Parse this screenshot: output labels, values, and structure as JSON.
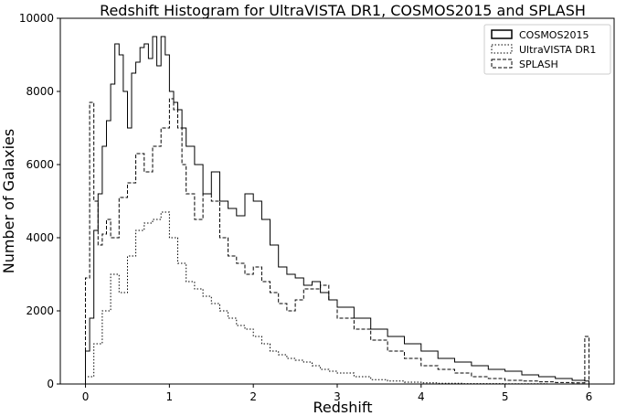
{
  "chart_data": {
    "type": "line",
    "title": "Redshift Histogram for UltraVISTA DR1, COSMOS2015 and SPLASH",
    "xlabel": "Redshift",
    "ylabel": "Number of Galaxies",
    "xlim": [
      -0.3,
      6.3
    ],
    "ylim": [
      0,
      10000
    ],
    "xticks": [
      0,
      1,
      2,
      3,
      4,
      5,
      6
    ],
    "yticks": [
      0,
      2000,
      4000,
      6000,
      8000,
      10000
    ],
    "grid": false,
    "legend_position": "top-right",
    "series": [
      {
        "name": "COSMOS2015",
        "style": "solid",
        "x": [
          0.0,
          0.05,
          0.1,
          0.15,
          0.2,
          0.25,
          0.3,
          0.35,
          0.4,
          0.45,
          0.5,
          0.55,
          0.6,
          0.65,
          0.7,
          0.75,
          0.8,
          0.85,
          0.9,
          0.95,
          1.0,
          1.05,
          1.1,
          1.15,
          1.2,
          1.3,
          1.4,
          1.5,
          1.6,
          1.7,
          1.8,
          1.9,
          2.0,
          2.1,
          2.2,
          2.3,
          2.4,
          2.5,
          2.6,
          2.7,
          2.8,
          2.9,
          3.0,
          3.2,
          3.4,
          3.6,
          3.8,
          4.0,
          4.2,
          4.4,
          4.6,
          4.8,
          5.0,
          5.2,
          5.4,
          5.6,
          5.8,
          5.95,
          6.0
        ],
        "values": [
          900,
          1800,
          4200,
          5200,
          6500,
          7200,
          8200,
          9300,
          9000,
          8000,
          7000,
          8500,
          8800,
          9200,
          9300,
          8900,
          9500,
          8700,
          9500,
          9000,
          8000,
          7700,
          7500,
          7000,
          6500,
          6000,
          5200,
          5800,
          5000,
          4800,
          4600,
          5200,
          5000,
          4500,
          3800,
          3200,
          3000,
          2900,
          2700,
          2800,
          2500,
          2300,
          2100,
          1800,
          1500,
          1300,
          1100,
          900,
          700,
          600,
          500,
          400,
          350,
          250,
          200,
          150,
          100,
          80,
          0
        ]
      },
      {
        "name": "UltraVISTA DR1",
        "style": "dotted",
        "x": [
          0.0,
          0.1,
          0.2,
          0.3,
          0.4,
          0.5,
          0.6,
          0.7,
          0.8,
          0.9,
          1.0,
          1.1,
          1.2,
          1.3,
          1.4,
          1.5,
          1.6,
          1.7,
          1.8,
          1.9,
          2.0,
          2.1,
          2.2,
          2.3,
          2.4,
          2.5,
          2.6,
          2.7,
          2.8,
          2.9,
          3.0,
          3.2,
          3.4,
          3.6,
          3.8,
          4.0,
          4.2,
          4.5,
          5.0,
          5.5,
          6.0
        ],
        "values": [
          200,
          1100,
          2000,
          3000,
          2500,
          3500,
          4200,
          4400,
          4500,
          4700,
          4000,
          3300,
          2800,
          2600,
          2400,
          2200,
          2000,
          1800,
          1600,
          1500,
          1300,
          1100,
          900,
          800,
          700,
          650,
          600,
          500,
          400,
          350,
          300,
          200,
          120,
          80,
          50,
          30,
          20,
          10,
          5,
          0,
          0
        ]
      },
      {
        "name": "SPLASH",
        "style": "dashed",
        "x": [
          0.0,
          0.05,
          0.1,
          0.15,
          0.2,
          0.25,
          0.3,
          0.4,
          0.5,
          0.6,
          0.7,
          0.8,
          0.9,
          1.0,
          1.05,
          1.1,
          1.15,
          1.2,
          1.3,
          1.4,
          1.5,
          1.6,
          1.7,
          1.8,
          1.9,
          2.0,
          2.1,
          2.2,
          2.3,
          2.4,
          2.5,
          2.6,
          2.7,
          2.8,
          2.9,
          3.0,
          3.2,
          3.4,
          3.6,
          3.8,
          4.0,
          4.2,
          4.4,
          4.6,
          4.8,
          5.0,
          5.2,
          5.4,
          5.6,
          5.8,
          5.95,
          6.0
        ],
        "values": [
          2900,
          7700,
          5000,
          3800,
          4100,
          4500,
          4000,
          5100,
          5500,
          6300,
          5800,
          6500,
          7000,
          7800,
          7500,
          7000,
          6000,
          5200,
          4500,
          5200,
          5000,
          4000,
          3500,
          3300,
          3000,
          3200,
          2800,
          2500,
          2200,
          2000,
          2300,
          2600,
          2600,
          2700,
          2300,
          1800,
          1500,
          1200,
          900,
          700,
          500,
          400,
          300,
          200,
          150,
          100,
          80,
          60,
          40,
          30,
          1300,
          0
        ]
      }
    ]
  }
}
